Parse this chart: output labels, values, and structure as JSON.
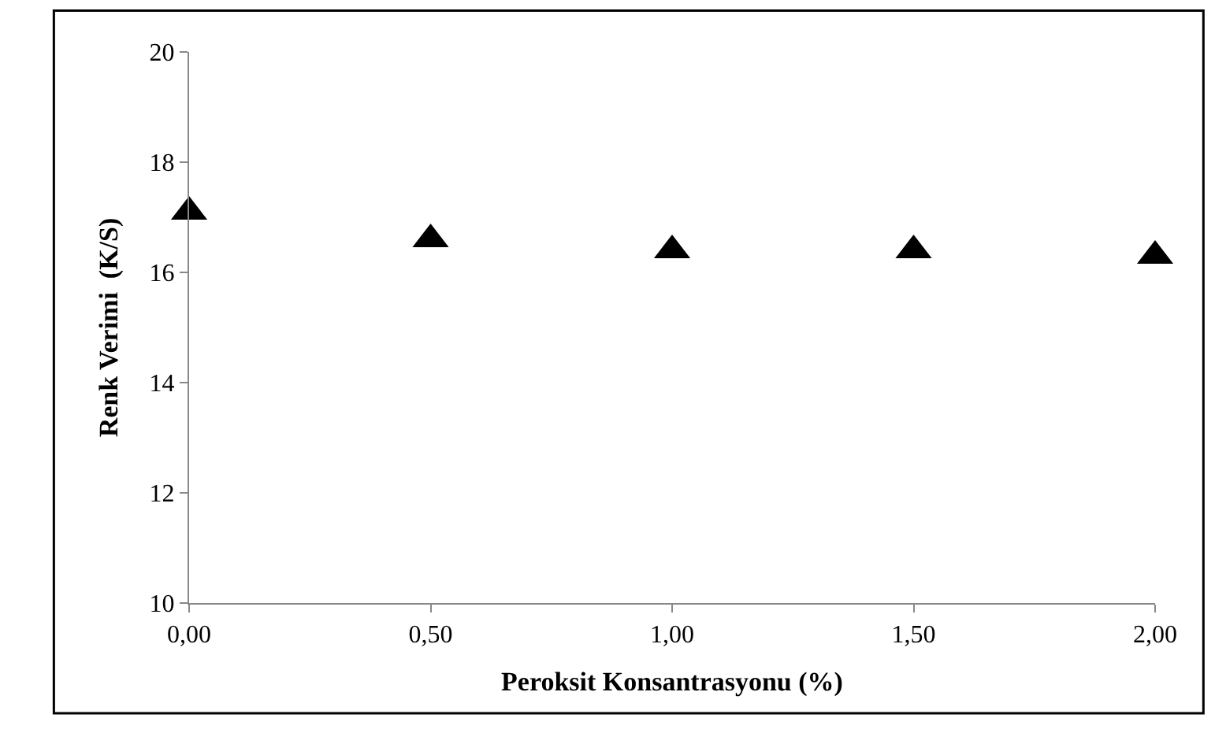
{
  "chart_data": {
    "type": "scatter",
    "xlabel": "Peroksit Konsantrasyonu (%)",
    "ylabel": "Renk Verimi  (K/S)",
    "x": [
      0,
      0.5,
      1,
      1.5,
      2
    ],
    "series": [
      {
        "color": "#000000",
        "values": [
          17.1,
          16.6,
          16.4,
          16.4,
          16.3
        ]
      }
    ],
    "xlim": [
      0,
      2
    ],
    "xticks": [
      {
        "value": 0,
        "label": "0,00"
      },
      {
        "value": 0.5,
        "label": "0,50"
      },
      {
        "value": 1,
        "label": "1,00"
      },
      {
        "value": 1.5,
        "label": "1,50"
      },
      {
        "value": 2,
        "label": "2,00"
      }
    ],
    "ylim": [
      10,
      20
    ],
    "yticks": [
      10,
      12,
      14,
      16,
      18,
      20
    ],
    "marker": "triangle",
    "legend": false
  }
}
